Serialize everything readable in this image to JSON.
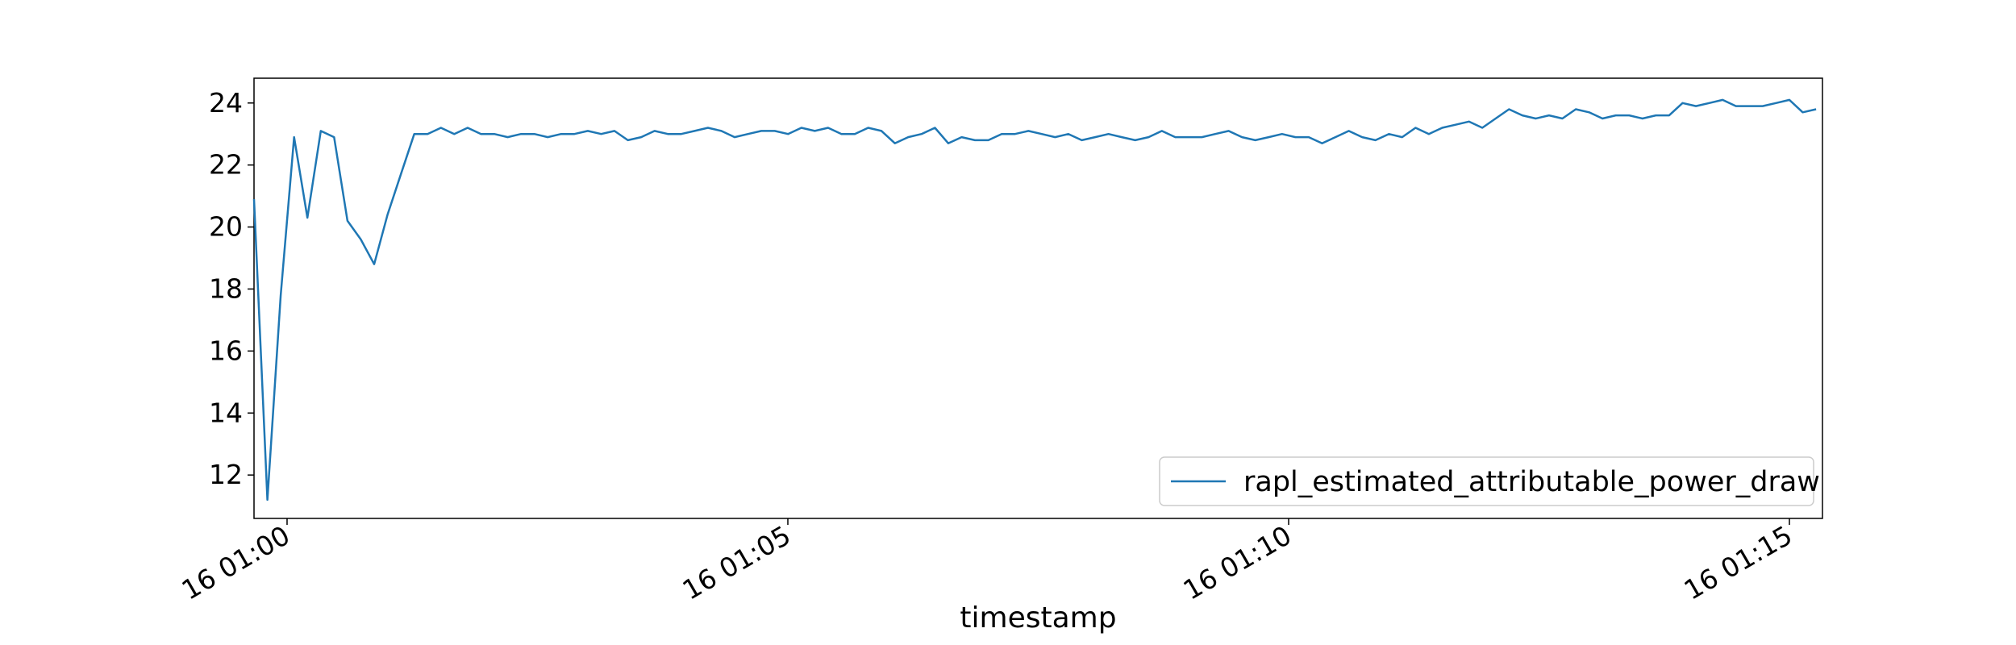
{
  "chart_data": {
    "type": "line",
    "title": "",
    "xlabel": "timestamp",
    "ylabel": "",
    "x_tick_labels": [
      "16 01:00",
      "16 01:05",
      "16 01:10",
      "16 01:15"
    ],
    "x_tick_values_min": [
      0,
      5,
      10,
      15
    ],
    "xlim_min": [
      -0.33,
      15.33
    ],
    "y_ticks": [
      12,
      14,
      16,
      18,
      20,
      22,
      24
    ],
    "ylim": [
      10.6,
      24.8
    ],
    "grid": false,
    "legend_position": "lower-right",
    "series": [
      {
        "name": "rapl_estimated_attributable_power_draw",
        "color": "#1f77b4",
        "x_step_min": 0.1333,
        "x_start_min": -0.33,
        "values": [
          20.9,
          11.2,
          17.8,
          22.9,
          20.3,
          23.1,
          22.9,
          20.2,
          19.6,
          18.8,
          20.4,
          21.7,
          23.0,
          23.0,
          23.2,
          23.0,
          23.2,
          23.0,
          23.0,
          22.9,
          23.0,
          23.0,
          22.9,
          23.0,
          23.0,
          23.1,
          23.0,
          23.1,
          22.8,
          22.9,
          23.1,
          23.0,
          23.0,
          23.1,
          23.2,
          23.1,
          22.9,
          23.0,
          23.1,
          23.1,
          23.0,
          23.2,
          23.1,
          23.2,
          23.0,
          23.0,
          23.2,
          23.1,
          22.7,
          22.9,
          23.0,
          23.2,
          22.7,
          22.9,
          22.8,
          22.8,
          23.0,
          23.0,
          23.1,
          23.0,
          22.9,
          23.0,
          22.8,
          22.9,
          23.0,
          22.9,
          22.8,
          22.9,
          23.1,
          22.9,
          22.9,
          22.9,
          23.0,
          23.1,
          22.9,
          22.8,
          22.9,
          23.0,
          22.9,
          22.9,
          22.7,
          22.9,
          23.1,
          22.9,
          22.8,
          23.0,
          22.9,
          23.2,
          23.0,
          23.2,
          23.3,
          23.4,
          23.2,
          23.5,
          23.8,
          23.6,
          23.5,
          23.6,
          23.5,
          23.8,
          23.7,
          23.5,
          23.6,
          23.6,
          23.5,
          23.6,
          23.6,
          24.0,
          23.9,
          24.0,
          24.1,
          23.9,
          23.9,
          23.9,
          24.0,
          24.1,
          23.7,
          23.8
        ]
      }
    ]
  }
}
